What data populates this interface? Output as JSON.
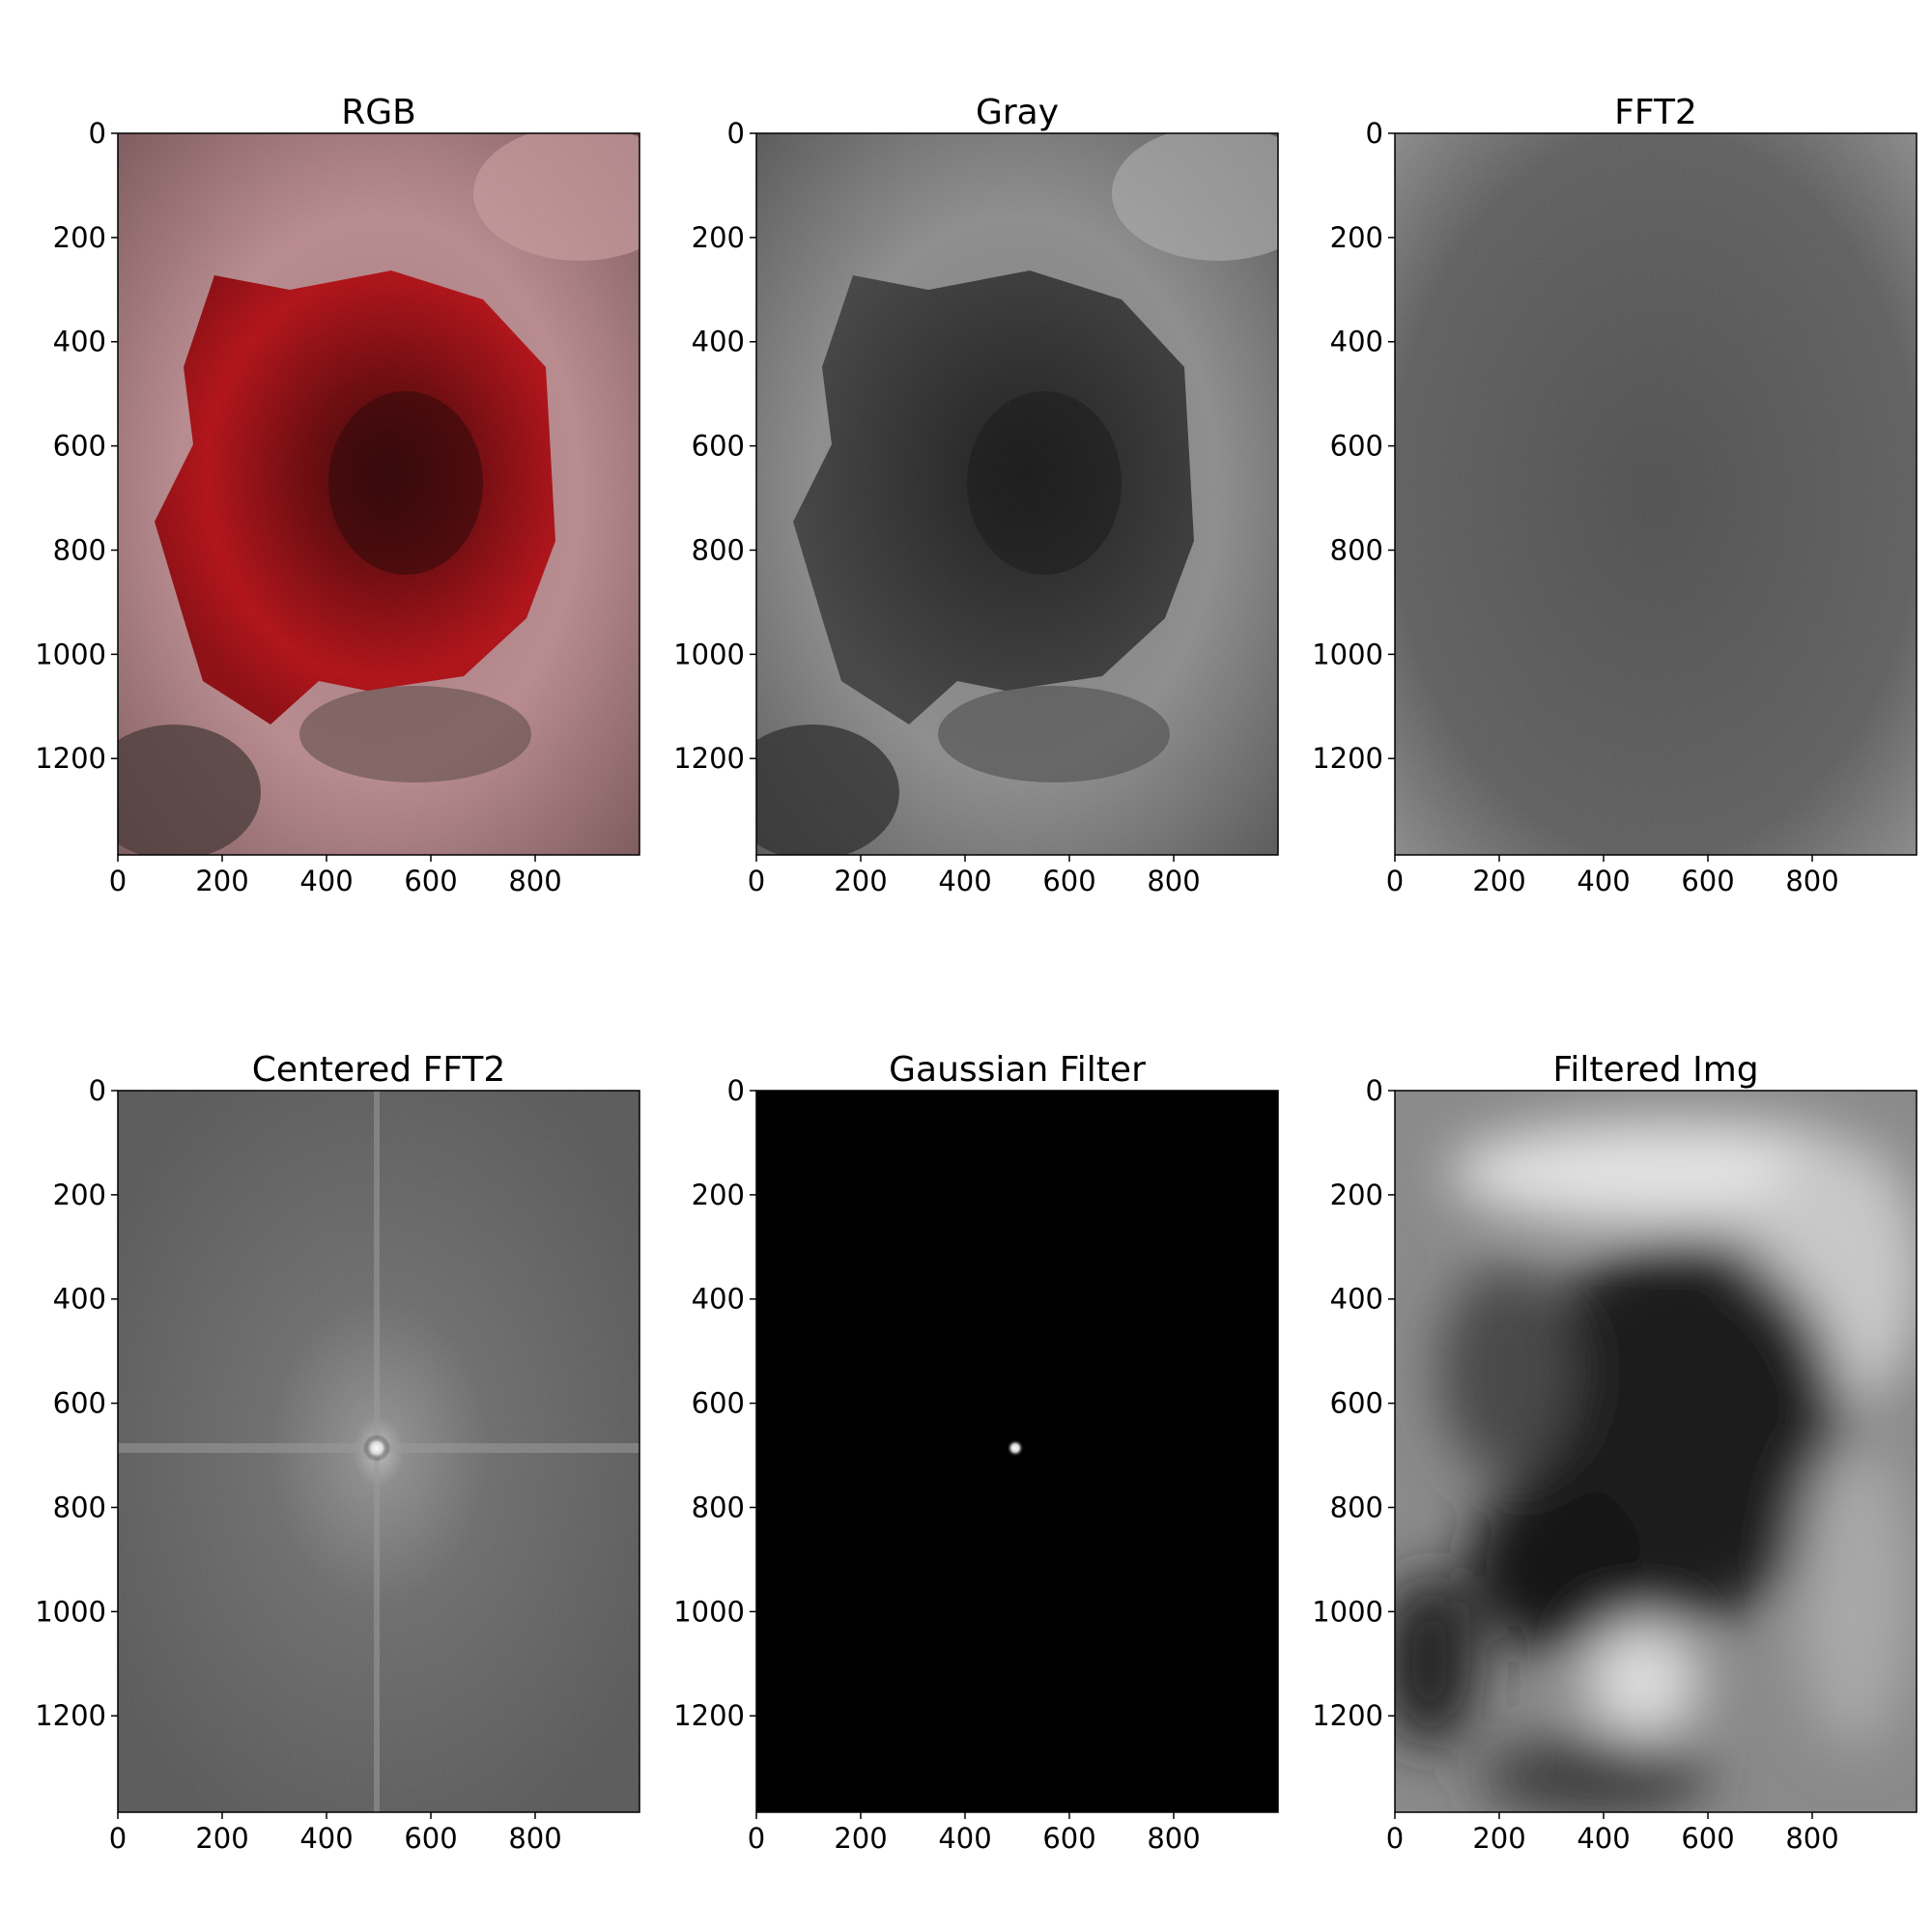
{
  "chart_data": [
    {
      "type": "image",
      "title": "RGB",
      "xlim": [
        0,
        1000
      ],
      "ylim": [
        0,
        1385
      ],
      "x_ticks": [
        0,
        200,
        400,
        600,
        800
      ],
      "y_ticks": [
        0,
        200,
        400,
        600,
        800,
        1000,
        1200
      ],
      "content": "color photo of a red rose with water droplets",
      "colors": {
        "petal": "#a60d12",
        "background": "#b98a8e"
      }
    },
    {
      "type": "image",
      "title": "Gray",
      "xlim": [
        0,
        1000
      ],
      "ylim": [
        0,
        1385
      ],
      "x_ticks": [
        0,
        200,
        400,
        600,
        800
      ],
      "y_ticks": [
        0,
        200,
        400,
        600,
        800,
        1000,
        1200
      ],
      "content": "grayscale version of the rose photo"
    },
    {
      "type": "heatmap",
      "title": "FFT2",
      "xlim": [
        0,
        1000
      ],
      "ylim": [
        0,
        1385
      ],
      "x_ticks": [
        0,
        200,
        400,
        600,
        800
      ],
      "y_ticks": [
        0,
        200,
        400,
        600,
        800,
        1000,
        1200
      ],
      "content": "log magnitude spectrum, uncentered, bright corners"
    },
    {
      "type": "heatmap",
      "title": "Centered FFT2",
      "xlim": [
        0,
        1000
      ],
      "ylim": [
        0,
        1385
      ],
      "x_ticks": [
        0,
        200,
        400,
        600,
        800
      ],
      "y_ticks": [
        0,
        200,
        400,
        600,
        800,
        1000,
        1200
      ],
      "content": "log magnitude spectrum, shifted, bright center with cross",
      "center": [
        500,
        692
      ]
    },
    {
      "type": "heatmap",
      "title": "Gaussian Filter",
      "xlim": [
        0,
        1000
      ],
      "ylim": [
        0,
        1385
      ],
      "x_ticks": [
        0,
        200,
        400,
        600,
        800
      ],
      "y_ticks": [
        0,
        200,
        400,
        600,
        800,
        1000,
        1200
      ],
      "content": "black field with small bright gaussian spot",
      "center": [
        500,
        692
      ]
    },
    {
      "type": "heatmap",
      "title": "Filtered Img",
      "xlim": [
        0,
        1000
      ],
      "ylim": [
        0,
        1385
      ],
      "x_ticks": [
        0,
        200,
        400,
        600,
        800
      ],
      "y_ticks": [
        0,
        200,
        400,
        600,
        800,
        1000,
        1200
      ],
      "content": "low-pass filtered grayscale image (heavily blurred rose)"
    }
  ]
}
